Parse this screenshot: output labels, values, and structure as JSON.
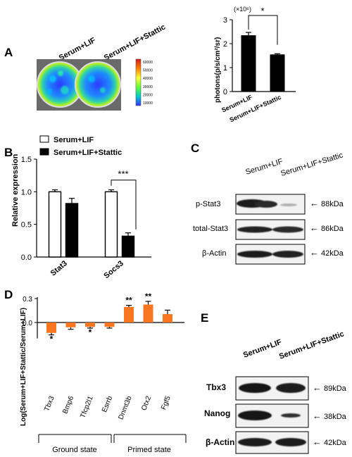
{
  "panels": {
    "A": {
      "letter": "A",
      "image": {
        "labels": [
          "Serum+LIF",
          "Serum+LIF+Stattic"
        ],
        "colorbar_ticks": [
          "60000",
          "50000",
          "40000",
          "30000",
          "20000",
          "10000"
        ],
        "colorbar_colors": [
          "#d7191c",
          "#ff7f00",
          "#ffff33",
          "#66ff33",
          "#00cccc",
          "#3333ff"
        ]
      },
      "chart_data": {
        "type": "bar",
        "ylabel": "photons(p/s/cm²/sr)",
        "yunit_label": "(×10⁶)",
        "categories": [
          "Serum+LIF",
          "Serum+LIF+Stattic"
        ],
        "values": [
          2.35,
          1.55
        ],
        "errors": [
          0.12,
          0.03
        ],
        "colors": [
          "#000000",
          "#000000"
        ],
        "ylim": [
          0,
          3
        ],
        "yticks": [
          "0",
          "1",
          "2",
          "3"
        ],
        "significance": "*"
      }
    },
    "B": {
      "letter": "B",
      "chart_data": {
        "type": "bar",
        "ylabel": "Relative expression",
        "categories": [
          "Stat3",
          "Socs3"
        ],
        "series": [
          {
            "name": "Serum+LIF",
            "values": [
              1.0,
              1.0
            ],
            "errors": [
              0.03,
              0.03
            ],
            "color": "#ffffff"
          },
          {
            "name": "Serum+LIF+Stattic",
            "values": [
              0.82,
              0.32
            ],
            "errors": [
              0.08,
              0.05
            ],
            "color": "#000000"
          }
        ],
        "ylim": [
          0,
          1.5
        ],
        "yticks": [
          "0.0",
          "0.5",
          "1.0",
          "1.5"
        ],
        "significance": "***"
      }
    },
    "C": {
      "letter": "C",
      "columns": [
        "Serum+LIF",
        "Serum+LIF+Stattic"
      ],
      "rows": [
        {
          "label": "p-Stat3",
          "size": "88kDa"
        },
        {
          "label": "total-Stat3",
          "size": "86kDa"
        },
        {
          "label": "β-Actin",
          "size": "42kDa"
        }
      ],
      "arrow": "←"
    },
    "D": {
      "letter": "D",
      "chart_data": {
        "type": "bar",
        "ylabel": "Log(Serum+LIF+Stattic/Serum+LIF)",
        "categories": [
          "Tbx3",
          "Bmp6",
          "Tfcp2l1",
          "Esrrb",
          "Dnmt3b",
          "Otx2",
          "Fgf5"
        ],
        "values": [
          -0.13,
          -0.06,
          -0.055,
          -0.055,
          0.195,
          0.225,
          0.105
        ],
        "errors": [
          0.025,
          0.025,
          0.015,
          0.015,
          0.02,
          0.04,
          0.05
        ],
        "color": "#f7761f",
        "ylim": [
          -0.2,
          0.3
        ],
        "yticks": [
          "0.3",
          "0.0"
        ],
        "significance": [
          "*",
          "",
          "*",
          "",
          "**",
          "**",
          ""
        ],
        "groups": [
          "Ground state",
          "Primed state"
        ]
      }
    },
    "E": {
      "letter": "E",
      "columns": [
        "Serum+LIF",
        "Serum+LIF+Stattic"
      ],
      "rows": [
        {
          "label": "Tbx3",
          "size": "89kDa"
        },
        {
          "label": "Nanog",
          "size": "38kDa"
        },
        {
          "label": "β-Actin",
          "size": "42kDa"
        }
      ],
      "arrow": "←"
    }
  }
}
